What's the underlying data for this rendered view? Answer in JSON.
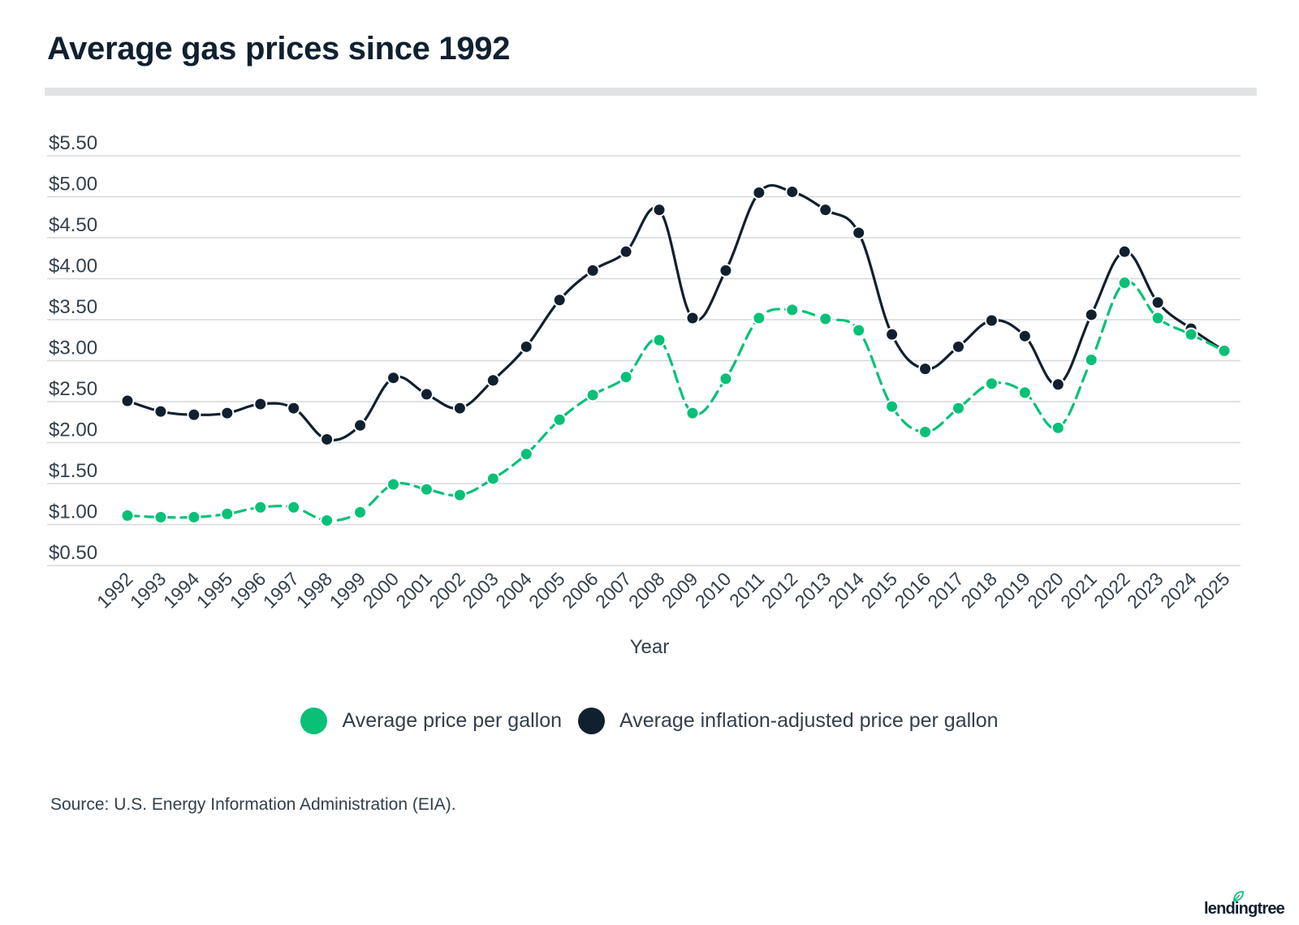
{
  "title": "Average gas prices since 1992",
  "source_note": "Source: U.S. Energy Information Administration (EIA).",
  "brand": {
    "logo_text": "lendingtree",
    "colors": {
      "text": "#11202f",
      "leaf": "#08c177"
    }
  },
  "colors": {
    "nominal": "#08c177",
    "inflation_adjusted": "#11202f",
    "grid": "#d5d8db",
    "title": "#11202f",
    "text": "#33404c"
  },
  "legend": {
    "placement": "bottom-center",
    "items": [
      {
        "label": "Average price per gallon",
        "color": "#08c177"
      },
      {
        "label": "Average inflation-adjusted price per gallon",
        "color": "#11202f"
      }
    ]
  },
  "chart_data": {
    "type": "line",
    "title": "Average gas prices since 1992",
    "xlabel": "Year",
    "ylabel": "",
    "ylim": [
      0.5,
      5.5
    ],
    "yticks": [
      "$0.50",
      "$1.00",
      "$1.50",
      "$2.00",
      "$2.50",
      "$3.00",
      "$3.50",
      "$4.00",
      "$4.50",
      "$5.00",
      "$5.50"
    ],
    "ytick_values": [
      0.5,
      1.0,
      1.5,
      2.0,
      2.5,
      3.0,
      3.5,
      4.0,
      4.5,
      5.0,
      5.5
    ],
    "grid": true,
    "categories": [
      "1992",
      "1993",
      "1994",
      "1995",
      "1996",
      "1997",
      "1998",
      "1999",
      "2000",
      "2001",
      "2002",
      "2003",
      "2004",
      "2005",
      "2006",
      "2007",
      "2008",
      "2009",
      "2010",
      "2011",
      "2012",
      "2013",
      "2014",
      "2015",
      "2016",
      "2017",
      "2018",
      "2019",
      "2020",
      "2021",
      "2022",
      "2023",
      "2024",
      "2025"
    ],
    "series": [
      {
        "name": "Average price per gallon",
        "color": "#08c177",
        "style": "dashed",
        "values": [
          1.11,
          1.09,
          1.09,
          1.13,
          1.21,
          1.21,
          1.05,
          1.15,
          1.49,
          1.43,
          1.36,
          1.56,
          1.86,
          2.28,
          2.58,
          2.8,
          3.25,
          2.36,
          2.78,
          3.52,
          3.62,
          3.51,
          3.37,
          2.44,
          2.13,
          2.42,
          2.72,
          2.61,
          2.18,
          3.01,
          3.95,
          3.52,
          3.32,
          3.12
        ]
      },
      {
        "name": "Average inflation-adjusted price per gallon",
        "color": "#11202f",
        "style": "solid",
        "values": [
          2.51,
          2.38,
          2.34,
          2.36,
          2.47,
          2.42,
          2.04,
          2.21,
          2.79,
          2.59,
          2.42,
          2.76,
          3.17,
          3.74,
          4.1,
          4.33,
          4.84,
          3.52,
          4.1,
          5.05,
          5.06,
          4.84,
          4.56,
          3.32,
          2.9,
          3.17,
          3.49,
          3.3,
          2.71,
          3.56,
          4.33,
          3.71,
          3.39,
          3.12
        ]
      }
    ]
  }
}
